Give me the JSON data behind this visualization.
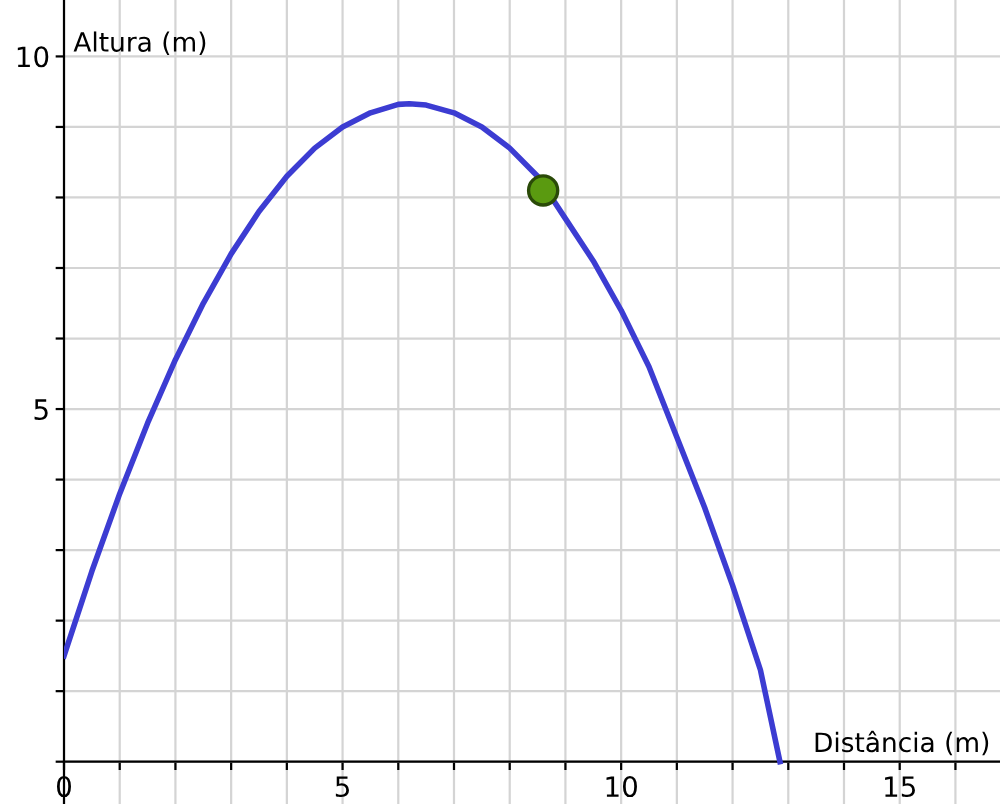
{
  "chart_data": {
    "type": "line",
    "xlabel": "Distância (m)",
    "ylabel": "Altura (m)",
    "series": [
      {
        "color": "#3c3cd2",
        "marker": "none",
        "x": [
          0,
          0.5,
          1,
          1.5,
          2,
          2.5,
          3,
          3.5,
          4,
          4.5,
          5,
          5.5,
          6,
          6.2,
          6.5,
          7,
          7.5,
          8,
          8.5,
          9,
          9.5,
          10,
          10.5,
          11,
          11.5,
          12,
          12.5,
          12.85
        ],
        "values": [
          1.5,
          2.7,
          3.8,
          4.8,
          5.7,
          6.5,
          7.2,
          7.8,
          8.3,
          8.7,
          9.0,
          9.2,
          9.32,
          9.33,
          9.31,
          9.2,
          9.0,
          8.7,
          8.3,
          7.7,
          7.1,
          6.4,
          5.6,
          4.6,
          3.6,
          2.5,
          1.3,
          0
        ]
      },
      {
        "type": "scatter",
        "color": "#5a9a10",
        "marker": "circle",
        "x": [
          8.6
        ],
        "values": [
          8.1
        ]
      }
    ],
    "xlim": [
      0,
      16.8
    ],
    "ylim": [
      -0.6,
      10.8
    ],
    "xticks": [
      {
        "value": 0,
        "label": "0"
      },
      {
        "value": 1,
        "label": null
      },
      {
        "value": 2,
        "label": null
      },
      {
        "value": 3,
        "label": null
      },
      {
        "value": 4,
        "label": null
      },
      {
        "value": 5,
        "label": "5"
      },
      {
        "value": 6,
        "label": null
      },
      {
        "value": 7,
        "label": null
      },
      {
        "value": 8,
        "label": null
      },
      {
        "value": 9,
        "label": null
      },
      {
        "value": 10,
        "label": "10"
      },
      {
        "value": 11,
        "label": null
      },
      {
        "value": 12,
        "label": null
      },
      {
        "value": 13,
        "label": null
      },
      {
        "value": 14,
        "label": null
      },
      {
        "value": 15,
        "label": "15"
      },
      {
        "value": 16,
        "label": null
      }
    ],
    "yticks": [
      {
        "value": 0,
        "label": null
      },
      {
        "value": 1,
        "label": null
      },
      {
        "value": 2,
        "label": null
      },
      {
        "value": 3,
        "label": null
      },
      {
        "value": 4,
        "label": null
      },
      {
        "value": 5,
        "label": "5"
      },
      {
        "value": 6,
        "label": null
      },
      {
        "value": 7,
        "label": null
      },
      {
        "value": 8,
        "label": null
      },
      {
        "value": 9,
        "label": null
      },
      {
        "value": 10,
        "label": "10"
      }
    ],
    "grid": true,
    "legend": false
  }
}
